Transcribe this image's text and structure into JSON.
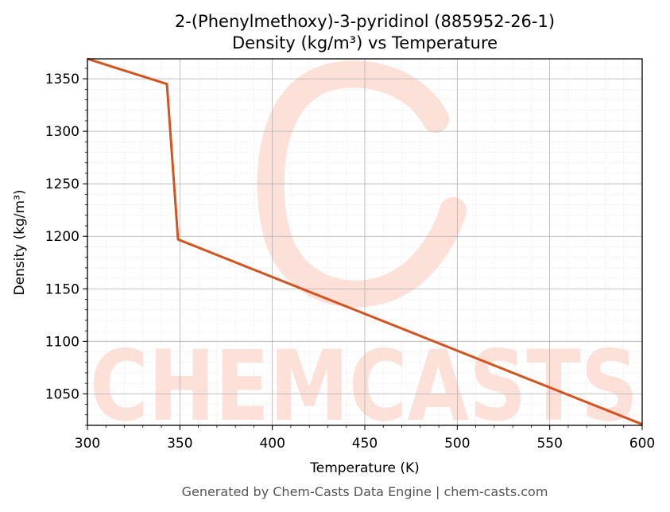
{
  "chart_data": {
    "type": "line",
    "title": "2-(Phenylmethoxy)-3-pyridinol (885952-26-1)",
    "subtitle": "Density (kg/m³) vs Temperature",
    "xlabel": "Temperature (K)",
    "ylabel": "Density (kg/m³)",
    "xlim": [
      300,
      600
    ],
    "ylim": [
      1020,
      1369
    ],
    "x_ticks": [
      300,
      350,
      400,
      450,
      500,
      550,
      600
    ],
    "y_ticks": [
      1050,
      1100,
      1150,
      1200,
      1250,
      1300,
      1350
    ],
    "grid": true,
    "series": [
      {
        "color": "#d4531f",
        "x": [
          300,
          343,
          349,
          600
        ],
        "y": [
          1369,
          1345,
          1197,
          1021
        ]
      }
    ]
  },
  "watermark": {
    "text": "CHEMCASTS",
    "color": "#fde0d8"
  },
  "footer": "Generated by Chem-Casts Data Engine | chem-casts.com"
}
